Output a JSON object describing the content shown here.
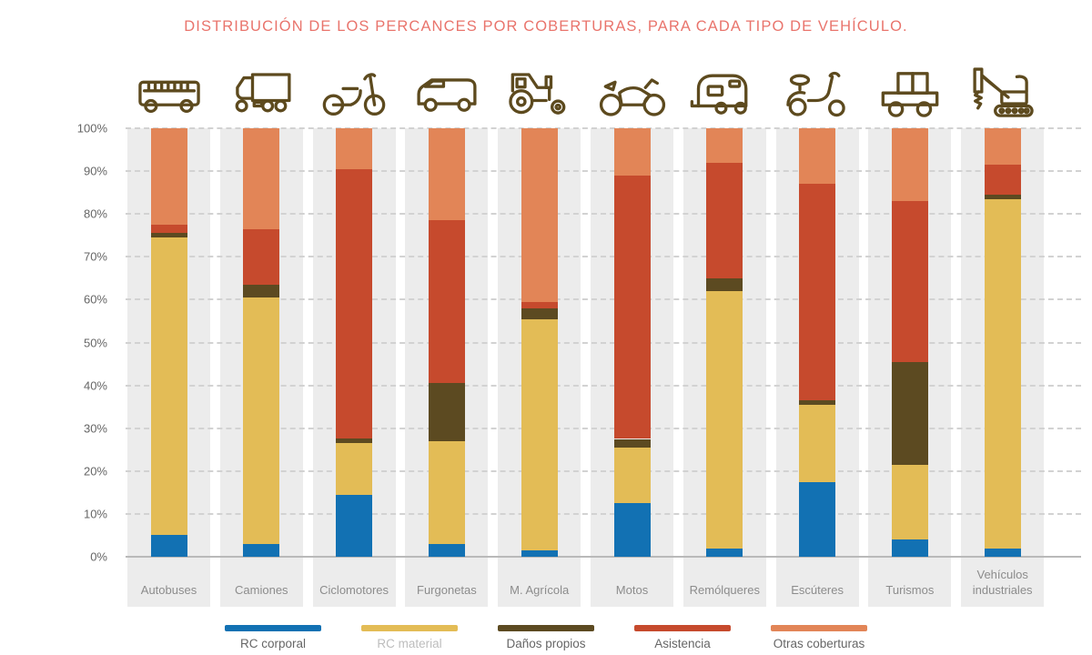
{
  "title": "DISTRIBUCIÓN DE LOS PERCANCES POR COBERTURAS, PARA CADA TIPO DE VEHÍCULO.",
  "colors": {
    "title": "#e9746c",
    "icon": "#5d4a1e",
    "band": "#ececec",
    "grid": "#d2d2d2",
    "axis_line": "#b9b9b9",
    "y_tick_text": "#666666",
    "category_text": "#8c8c8c",
    "rc_corporal": "#1271b3",
    "rc_material": "#e3bc56",
    "danos_propios": "#5c4a21",
    "asistencia": "#c64a2d",
    "otras_coberturas": "#e28557"
  },
  "y_axis": {
    "ticks": [
      "100%",
      "90%",
      "80%",
      "70%",
      "60%",
      "50%",
      "40%",
      "30%",
      "20%",
      "10%",
      "0%"
    ]
  },
  "legend": {
    "items": [
      {
        "label": "RC corporal",
        "color": "#1271b3",
        "label_color": "#666666"
      },
      {
        "label": "RC material",
        "color": "#e3bc56",
        "label_color": "#bdbdbd"
      },
      {
        "label": "Daños propios",
        "color": "#5c4a21",
        "label_color": "#666666"
      },
      {
        "label": "Asistencia",
        "color": "#c64a2d",
        "label_color": "#666666"
      },
      {
        "label": "Otras coberturas",
        "color": "#e28557",
        "label_color": "#666666"
      }
    ]
  },
  "chart_data": {
    "type": "bar",
    "stacked": true,
    "unit": "percent",
    "ylim": [
      0,
      100
    ],
    "y_tick_step": 10,
    "grid": "horizontal dashed",
    "legend_position": "bottom",
    "title": "DISTRIBUCIÓN DE LOS PERCANCES POR COBERTURAS, PARA CADA TIPO DE VEHÍCULO.",
    "categories": [
      "Autobuses",
      "Camiones",
      "Ciclomotores",
      "Furgonetas",
      "M. Agrícola",
      "Motos",
      "Remólqueres",
      "Escúteres",
      "Turismos",
      "Vehículos industriales"
    ],
    "icons": [
      "bus-icon",
      "truck-icon",
      "moped-icon",
      "van-icon",
      "tractor-icon",
      "motorcycle-icon",
      "caravan-icon",
      "scooter-icon",
      "flatbed-icon",
      "excavator-icon"
    ],
    "series": [
      {
        "name": "RC corporal",
        "color": "#1271b3",
        "values": [
          5,
          3,
          14.5,
          3,
          1.5,
          12.5,
          2,
          17.5,
          4,
          2
        ]
      },
      {
        "name": "RC material",
        "color": "#e3bc56",
        "values": [
          69.5,
          57.5,
          12,
          24,
          54,
          13,
          60,
          18,
          17.5,
          81.5
        ]
      },
      {
        "name": "Daños propios",
        "color": "#5c4a21",
        "values": [
          1,
          3,
          1,
          13.5,
          2.5,
          2,
          3,
          1,
          24,
          1
        ]
      },
      {
        "name": "Asistencia",
        "color": "#c64a2d",
        "values": [
          2,
          13,
          63,
          38,
          1.5,
          61.5,
          27,
          50.5,
          37.5,
          7
        ]
      },
      {
        "name": "Otras coberturas",
        "color": "#e28557",
        "values": [
          22.5,
          23.5,
          9.5,
          21.5,
          40.5,
          11,
          8,
          13,
          17,
          8.5
        ]
      }
    ]
  }
}
